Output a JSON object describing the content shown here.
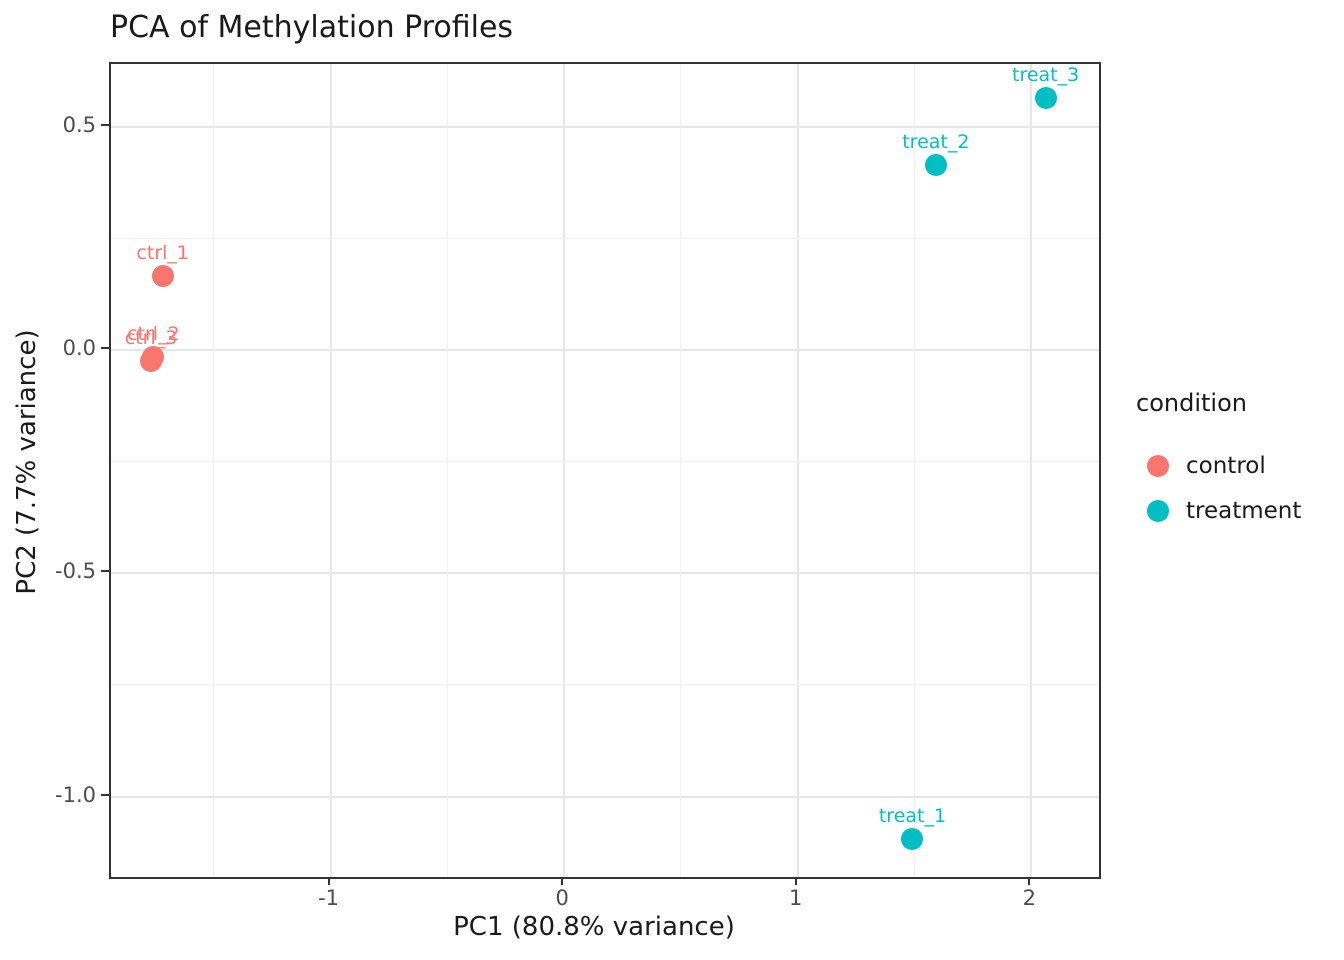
{
  "title": "PCA of Methylation Profiles",
  "chart_data": {
    "type": "scatter",
    "title": "PCA of Methylation Profiles",
    "xlabel": "PC1 (80.8% variance)",
    "ylabel": "PC2 (7.7% variance)",
    "xlim": [
      -1.94,
      2.29
    ],
    "ylim": [
      -1.18,
      0.64
    ],
    "grid": true,
    "legend_position": "right",
    "x_ticks": [
      {
        "value": -1,
        "label": "-1"
      },
      {
        "value": 0,
        "label": "0"
      },
      {
        "value": 1,
        "label": "1"
      },
      {
        "value": 2,
        "label": "2"
      }
    ],
    "y_ticks": [
      {
        "value": 0.5,
        "label": "0.5"
      },
      {
        "value": 0.0,
        "label": "0.0"
      },
      {
        "value": -0.5,
        "label": "-0.5"
      },
      {
        "value": -1.0,
        "label": "-1.0"
      }
    ],
    "x_minor_ticks": [
      -1.5,
      -0.5,
      0.5,
      1.5
    ],
    "y_minor_ticks": [
      0.25,
      -0.25,
      -0.75
    ],
    "series": [
      {
        "name": "control",
        "color": "#F8766D",
        "points": [
          {
            "label": "ctrl_1",
            "x": -1.71,
            "y": 0.16
          },
          {
            "label": "ctrl_2",
            "x": -1.75,
            "y": -0.02
          },
          {
            "label": "ctrl_3",
            "x": -1.76,
            "y": -0.03
          }
        ]
      },
      {
        "name": "treatment",
        "color": "#00BFC4",
        "points": [
          {
            "label": "treat_1",
            "x": 1.5,
            "y": -1.1
          },
          {
            "label": "treat_2",
            "x": 1.6,
            "y": 0.41
          },
          {
            "label": "treat_3",
            "x": 2.07,
            "y": 0.56
          }
        ]
      }
    ]
  },
  "legend": {
    "title": "condition",
    "items": [
      {
        "label": "control",
        "color": "#F8766D"
      },
      {
        "label": "treatment",
        "color": "#00BFC4"
      }
    ]
  },
  "colors": {
    "control": "#F8766D",
    "treatment": "#00BFC4",
    "grid_major": "#e7e7e7",
    "grid_minor": "#f0f0f0",
    "panel_border": "#333333",
    "tick_text": "#4d4d4d",
    "title_text": "#1a1a1a"
  }
}
